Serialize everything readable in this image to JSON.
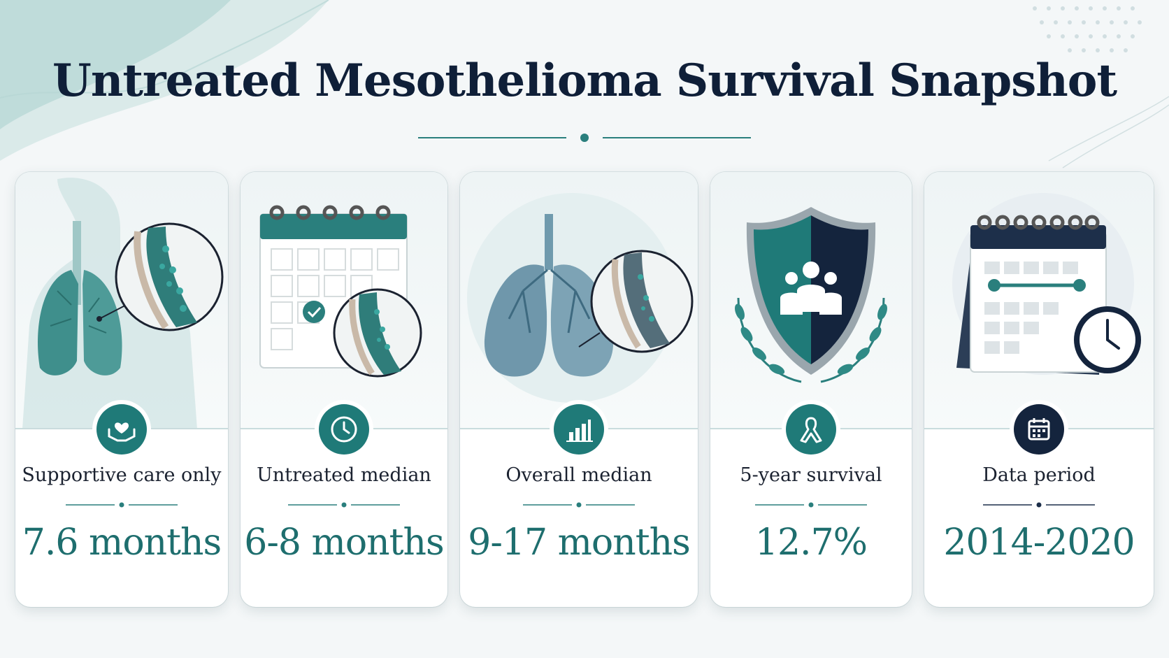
{
  "title": "Untreated Mesothelioma Survival Snapshot",
  "colors": {
    "accent": "#1f7a78",
    "navy": "#14243d",
    "value_text": "#1e6e6e"
  },
  "cards": [
    {
      "label": "Supportive care only",
      "value": "7.6 months",
      "icon": "heart-hands-icon",
      "illustration": "torso-lungs-magnifier"
    },
    {
      "label": "Untreated median",
      "value": "6-8 months",
      "icon": "clock-icon",
      "illustration": "calendar-magnifier"
    },
    {
      "label": "Overall median",
      "value": "9-17 months",
      "icon": "bar-chart-icon",
      "illustration": "lungs-magnifier"
    },
    {
      "label": "5-year survival",
      "value": "12.7%",
      "icon": "ribbon-icon",
      "illustration": "shield-people-laurel"
    },
    {
      "label": "Data period",
      "value": "2014-2020",
      "icon": "calendar-icon",
      "illustration": "calendar-clock"
    }
  ]
}
